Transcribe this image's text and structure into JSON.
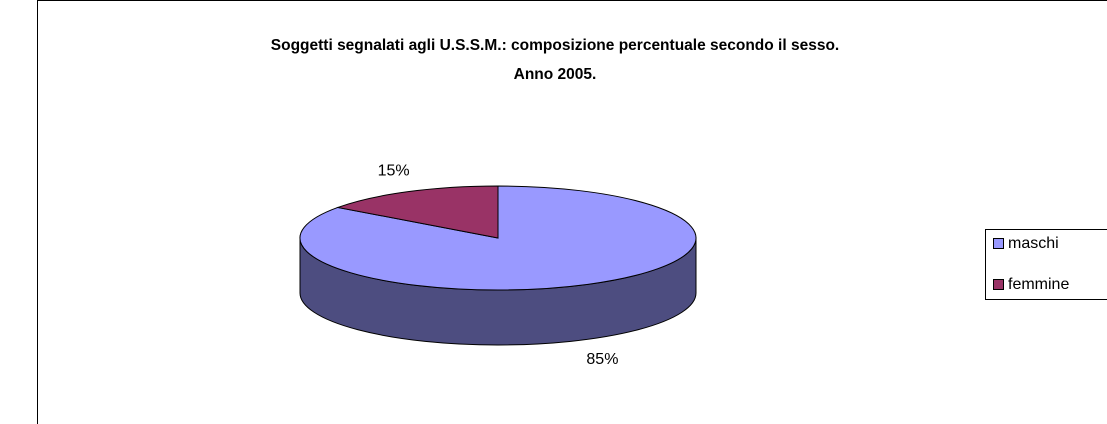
{
  "chart_data": {
    "type": "pie3d",
    "title": [
      "Soggetti segnalati agli U.S.S.M.: composizione percentuale secondo il sesso.",
      "Anno 2005."
    ],
    "categories": [
      "maschi",
      "femmine"
    ],
    "values": [
      85,
      15
    ],
    "value_labels": [
      "85%",
      "15%"
    ],
    "colors": [
      "#9999ff",
      "#993366"
    ],
    "legend": "right"
  }
}
